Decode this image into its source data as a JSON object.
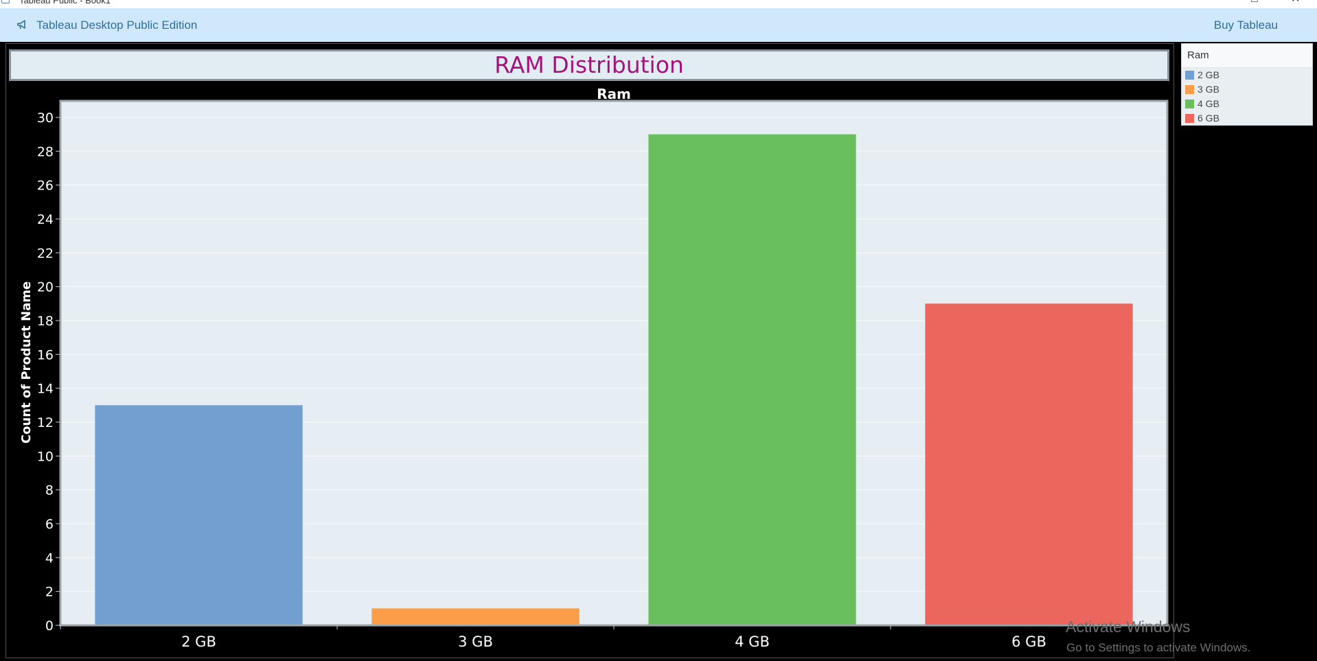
{
  "window": {
    "title": "Tableau Public - Book1",
    "maximize_glyph": "□",
    "close_glyph": "✕"
  },
  "banner": {
    "edition_label": "Tableau Desktop Public Edition",
    "buy_label": "Buy Tableau",
    "icon": "megaphone-icon"
  },
  "dashboard": {
    "title": "RAM Distribution"
  },
  "legend": {
    "title": "Ram",
    "items": [
      {
        "label": "2 GB",
        "color": "#739fd0"
      },
      {
        "label": "3 GB",
        "color": "#fc9d4a"
      },
      {
        "label": "4 GB",
        "color": "#69bf5d"
      },
      {
        "label": "6 GB",
        "color": "#eb665d"
      }
    ]
  },
  "watermark": {
    "title": "Activate Windows",
    "subtitle": "Go to Settings to activate Windows."
  },
  "chart_data": {
    "type": "bar",
    "title": "Ram",
    "xlabel": "",
    "ylabel": "Count of Product Name",
    "categories": [
      "2 GB",
      "3 GB",
      "4 GB",
      "6 GB"
    ],
    "values": [
      13,
      1,
      29,
      19
    ],
    "colors": [
      "#739fd0",
      "#fc9d4a",
      "#69bf5d",
      "#eb665d"
    ],
    "ylim": [
      0,
      30
    ],
    "yticks": [
      0,
      2,
      4,
      6,
      8,
      10,
      12,
      14,
      16,
      18,
      20,
      22,
      24,
      26,
      28,
      30
    ],
    "grid": true,
    "legend": "right"
  }
}
